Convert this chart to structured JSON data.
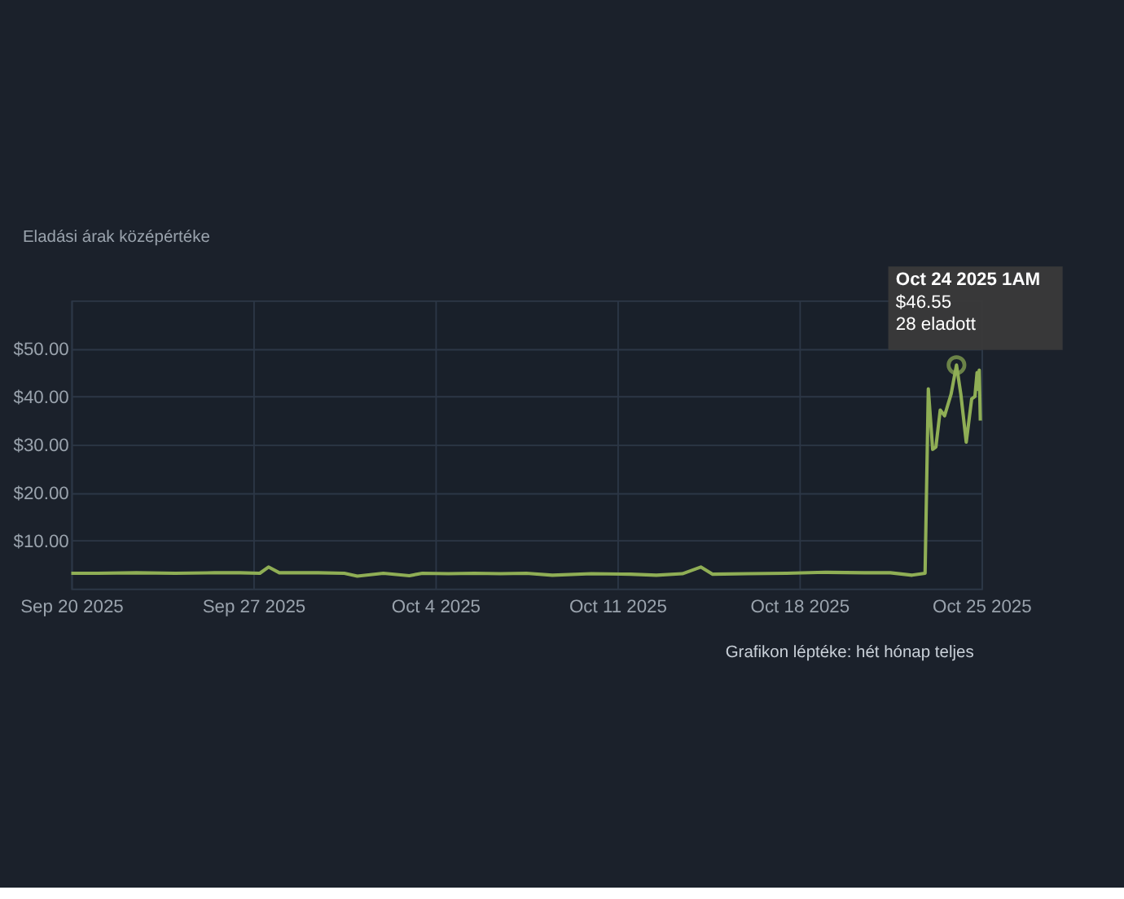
{
  "chart_data": {
    "type": "line",
    "title": "Eladási árak középértéke",
    "x": [
      "2025-09-20T00:00",
      "2025-09-21T00:00",
      "2025-09-22T12:00",
      "2025-09-24T00:00",
      "2025-09-25T12:00",
      "2025-09-26T12:00",
      "2025-09-27T06:00",
      "2025-09-27T14:00",
      "2025-09-28T00:00",
      "2025-09-29T12:00",
      "2025-09-30T12:00",
      "2025-10-01T00:00",
      "2025-10-02T00:00",
      "2025-10-03T00:00",
      "2025-10-03T12:00",
      "2025-10-04T12:00",
      "2025-10-05T12:00",
      "2025-10-06T12:00",
      "2025-10-07T12:00",
      "2025-10-08T12:00",
      "2025-10-10T00:00",
      "2025-10-11T12:00",
      "2025-10-12T12:00",
      "2025-10-13T12:00",
      "2025-10-14T05:00",
      "2025-10-14T16:00",
      "2025-10-16T00:00",
      "2025-10-17T12:00",
      "2025-10-19T00:00",
      "2025-10-20T12:00",
      "2025-10-21T12:00",
      "2025-10-22T08:00",
      "2025-10-22T20:00",
      "2025-10-22T23:00",
      "2025-10-23T03:00",
      "2025-10-23T06:00",
      "2025-10-23T10:00",
      "2025-10-23T14:00",
      "2025-10-23T20:00",
      "2025-10-24T01:00",
      "2025-10-24T05:00",
      "2025-10-24T10:00",
      "2025-10-24T15:00",
      "2025-10-24T18:00",
      "2025-10-24T20:00",
      "2025-10-24T21:00",
      "2025-10-24T22:00",
      "2025-10-24T23:00"
    ],
    "series": [
      {
        "color": "#8fae55",
        "values": [
          3.2,
          3.2,
          3.3,
          3.2,
          3.3,
          3.3,
          3.2,
          4.5,
          3.3,
          3.3,
          3.2,
          2.6,
          3.2,
          2.7,
          3.2,
          3.1,
          3.2,
          3.1,
          3.2,
          2.8,
          3.1,
          3.0,
          2.8,
          3.1,
          4.5,
          3.0,
          3.1,
          3.2,
          3.4,
          3.3,
          3.3,
          2.8,
          3.2,
          41.6,
          29,
          29.5,
          37.2,
          36,
          40.5,
          46.55,
          40.5,
          30.5,
          39.5,
          40,
          45,
          41.5,
          45.5,
          35
        ]
      }
    ],
    "xlim": [
      "2025-09-20T00:00",
      "2025-10-25T00:00"
    ],
    "xticks": [
      {
        "value": "2025-09-20",
        "label": "Sep 20 2025"
      },
      {
        "value": "2025-09-27",
        "label": "Sep 27 2025"
      },
      {
        "value": "2025-10-04",
        "label": "Oct 4 2025"
      },
      {
        "value": "2025-10-11",
        "label": "Oct 11 2025"
      },
      {
        "value": "2025-10-18",
        "label": "Oct 18 2025"
      },
      {
        "value": "2025-10-25",
        "label": "Oct 25 2025"
      }
    ],
    "ylim": [
      0,
      60
    ],
    "yticks": [
      {
        "value": 10,
        "label": "$10.00"
      },
      {
        "value": 20,
        "label": "$20.00"
      },
      {
        "value": 30,
        "label": "$30.00"
      },
      {
        "value": 40,
        "label": "$40.00"
      },
      {
        "value": 50,
        "label": "$50.00"
      }
    ],
    "grid": true,
    "marker": "none",
    "line_style": "solid",
    "annotations": [
      {
        "text": "Oct 24 2025 1AM\n$46.55\n28 eladott",
        "x": "2025-10-24T01:00",
        "y": 46.55
      },
      "Grafikon léptéke: hét hónap teljes"
    ]
  }
}
